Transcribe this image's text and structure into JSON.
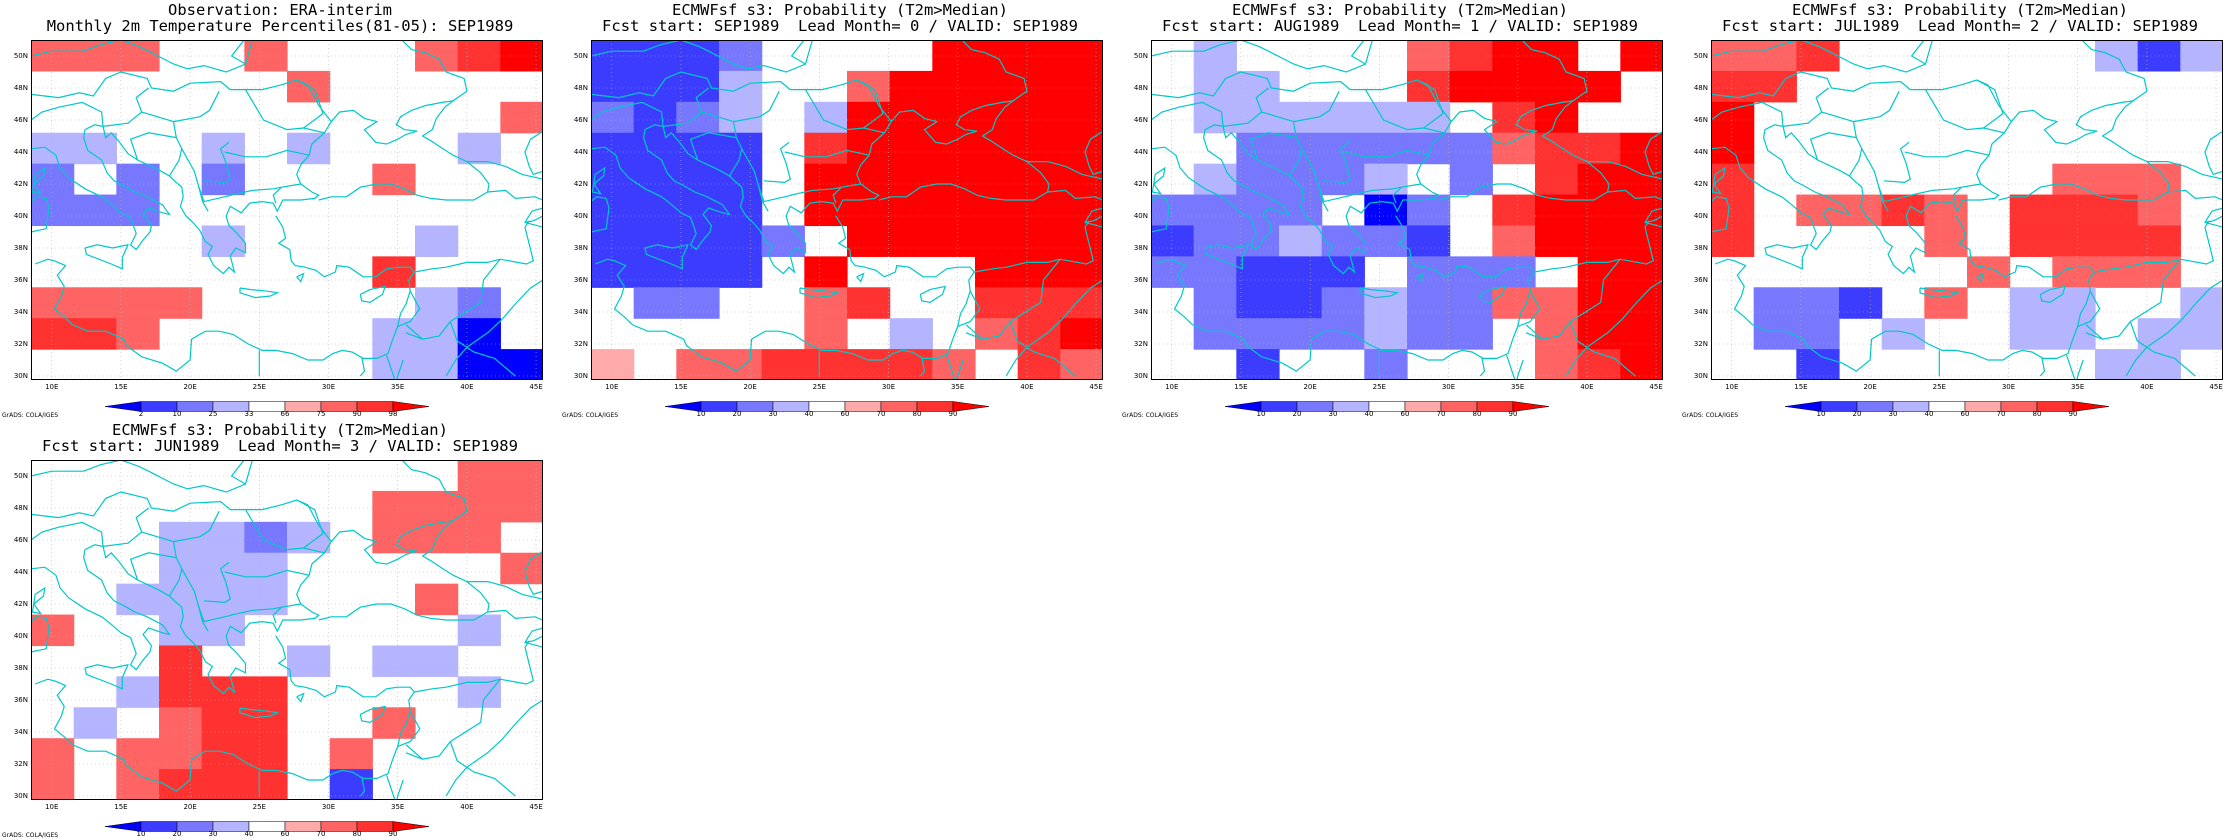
{
  "panels": [
    {
      "id": "obs",
      "title_line1": "Observation: ERA-interim",
      "title_line2": "Monthly 2m Temperature Percentiles(81-05): SEP1989",
      "colorbar_labels": [
        "2",
        "10",
        "25",
        "33",
        "66",
        "75",
        "90",
        "98"
      ],
      "colors": [
        "#0000ff",
        "#3c3cff",
        "#7878ff",
        "#b4b4ff",
        "#ffffff",
        "#ffaaaa",
        "#ff6464",
        "#ff3232",
        "#ff0000"
      ],
      "cells": [
        "666..6...678",
        "......6.....",
        "...........6",
        "33..3.3...3.",
        "2.2.2...6...",
        "222.........",
        "....3....3..",
        "........7...",
        "6666.....32.",
        "776.....330.",
        "........3300"
      ]
    },
    {
      "id": "lead0",
      "title_line1": "ECMWFsf s3: Probability (T2m>Median)",
      "title_line2": "Fcst start: SEP1989  Lead Month= 0 / VALID: SEP1989",
      "colorbar_labels": [
        "10",
        "20",
        "30",
        "40",
        "60",
        "70",
        "80",
        "90"
      ],
      "colors": [
        "#0000ff",
        "#3c3cff",
        "#7878ff",
        "#b4b4ff",
        "#ffffff",
        "#ffaaaa",
        "#ff6464",
        "#ff3232",
        "#ff0000"
      ],
      "cells": [
        "1112....8888",
        "1113..688888",
        "2123.3888888",
        "1111.7888888",
        "1111.8888888",
        "1111.8888888",
        "11112.888888",
        "1111.8...888",
        ".22..67..777",
        ".....6.3.678",
        "5.6677776.76"
      ]
    },
    {
      "id": "lead1",
      "title_line1": "ECMWFsf s3: Probability (T2m>Median)",
      "title_line2": "Fcst start: AUG1989  Lead Month= 1 / VALID: SEP1989",
      "colorbar_labels": [
        "10",
        "20",
        "30",
        "40",
        "60",
        "70",
        "80",
        "90"
      ],
      "colors": [
        "#0000ff",
        "#3c3cff",
        "#7878ff",
        "#b4b4ff",
        "#ffffff",
        "#ffaaaa",
        "#ff6464",
        "#ff3232",
        "#ff0000"
      ],
      "cells": [
        ".3....6788.8",
        ".33...78888.",
        ".333333.78..",
        "..2222226778",
        ".32223.2.788",
        "2222.02.7888",
        "1223221.6888",
        "22111.222.88",
        ".21123226688",
        ".2222322.688",
        "..1..2...678"
      ]
    },
    {
      "id": "lead2",
      "title_line1": "ECMWFsf s3: Probability (T2m>Median)",
      "title_line2": "Fcst start: JUL1989  Lead Month= 2 / VALID: SEP1989",
      "colorbar_labels": [
        "10",
        "20",
        "30",
        "40",
        "60",
        "70",
        "80",
        "90"
      ],
      "colors": [
        "#0000ff",
        "#3c3cff",
        "#7878ff",
        "#b4b4ff",
        "#ffffff",
        "#ffaaaa",
        "#ff6464",
        "#ff3232",
        "#ff0000"
      ],
      "cells": [
        "667......313",
        "77..........",
        "8...........",
        "8...........",
        "7.......666.",
        "7.6676.7776.",
        "7....6.7777.",
        "......6.666.",
        ".221.6.33..3",
        ".22.3..33.33",
        "..1......33."
      ]
    },
    {
      "id": "lead3",
      "title_line1": "ECMWFsf s3: Probability (T2m>Median)",
      "title_line2": "Fcst start: JUN1989  Lead Month= 3 / VALID: SEP1989",
      "colorbar_labels": [
        "10",
        "20",
        "30",
        "40",
        "60",
        "70",
        "80",
        "90"
      ],
      "colors": [
        "#0000ff",
        "#3c3cff",
        "#7878ff",
        "#b4b4ff",
        "#ffffff",
        "#ffaaaa",
        "#ff6464",
        "#ff3232",
        "#ff0000"
      ],
      "cells": [
        "..........66",
        "........6666",
        "...3323.666.",
        "...333.....6",
        "..3333...6..",
        "6..33.....3.",
        "...7..3.33..",
        "..3777....3.",
        ".3.677..6...",
        "6.6677.6....",
        "6.6777.1...."
      ]
    }
  ],
  "y_labels": [
    "50N",
    "48N",
    "46N",
    "44N",
    "42N",
    "40N",
    "38N",
    "36N",
    "34N",
    "32N",
    "30N"
  ],
  "x_labels": [
    "10E",
    "15E",
    "20E",
    "25E",
    "30E",
    "35E",
    "40E",
    "45E"
  ],
  "footer": "GrADS: COLA/IGES",
  "colors": {
    "coast": "#00c8c8",
    "grid": "#b4b4b4"
  }
}
